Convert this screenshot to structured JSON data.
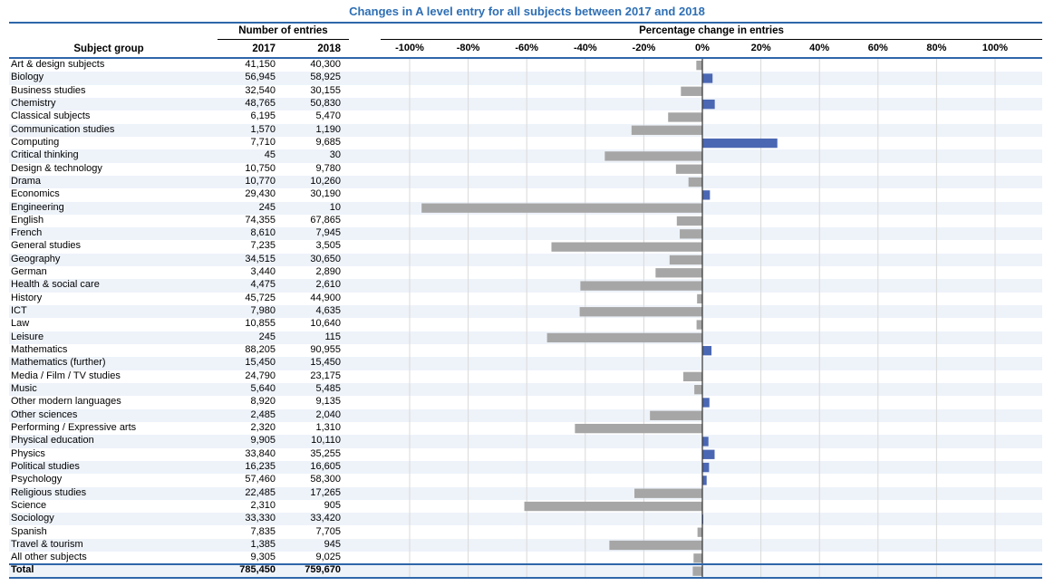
{
  "chart_data": {
    "type": "bar",
    "orientation": "horizontal",
    "title": "Changes in A level entry for all subjects between 2017 and 2018",
    "table_header": {
      "group_label": "Subject group",
      "entries_label": "Number of entries",
      "col_2017": "2017",
      "col_2018": "2018",
      "change_label": "Percentage change in entries"
    },
    "xlim": [
      -100,
      100
    ],
    "x_ticks": [
      "-100%",
      "-80%",
      "-60%",
      "-40%",
      "-20%",
      "0%",
      "20%",
      "40%",
      "60%",
      "80%",
      "100%"
    ],
    "grid": true,
    "colors": {
      "increase": "#4a67b3",
      "decrease": "#a6a6a6",
      "accent": "#2e6fb5",
      "stripe": "#eef3fa"
    },
    "rows": [
      {
        "subject": "Art & design subjects",
        "e2017": "41,150",
        "e2018": "40,300",
        "n2017": 41150,
        "n2018": 40300
      },
      {
        "subject": "Biology",
        "e2017": "56,945",
        "e2018": "58,925",
        "n2017": 56945,
        "n2018": 58925
      },
      {
        "subject": "Business studies",
        "e2017": "32,540",
        "e2018": "30,155",
        "n2017": 32540,
        "n2018": 30155
      },
      {
        "subject": "Chemistry",
        "e2017": "48,765",
        "e2018": "50,830",
        "n2017": 48765,
        "n2018": 50830
      },
      {
        "subject": "Classical subjects",
        "e2017": "6,195",
        "e2018": "5,470",
        "n2017": 6195,
        "n2018": 5470
      },
      {
        "subject": "Communication studies",
        "e2017": "1,570",
        "e2018": "1,190",
        "n2017": 1570,
        "n2018": 1190
      },
      {
        "subject": "Computing",
        "e2017": "7,710",
        "e2018": "9,685",
        "n2017": 7710,
        "n2018": 9685
      },
      {
        "subject": "Critical thinking",
        "e2017": "45",
        "e2018": "30",
        "n2017": 45,
        "n2018": 30
      },
      {
        "subject": "Design & technology",
        "e2017": "10,750",
        "e2018": "9,780",
        "n2017": 10750,
        "n2018": 9780
      },
      {
        "subject": "Drama",
        "e2017": "10,770",
        "e2018": "10,260",
        "n2017": 10770,
        "n2018": 10260
      },
      {
        "subject": "Economics",
        "e2017": "29,430",
        "e2018": "30,190",
        "n2017": 29430,
        "n2018": 30190
      },
      {
        "subject": "Engineering",
        "e2017": "245",
        "e2018": "10",
        "n2017": 245,
        "n2018": 10
      },
      {
        "subject": "English",
        "e2017": "74,355",
        "e2018": "67,865",
        "n2017": 74355,
        "n2018": 67865
      },
      {
        "subject": "French",
        "e2017": "8,610",
        "e2018": "7,945",
        "n2017": 8610,
        "n2018": 7945
      },
      {
        "subject": "General studies",
        "e2017": "7,235",
        "e2018": "3,505",
        "n2017": 7235,
        "n2018": 3505
      },
      {
        "subject": "Geography",
        "e2017": "34,515",
        "e2018": "30,650",
        "n2017": 34515,
        "n2018": 30650
      },
      {
        "subject": "German",
        "e2017": "3,440",
        "e2018": "2,890",
        "n2017": 3440,
        "n2018": 2890
      },
      {
        "subject": "Health & social care",
        "e2017": "4,475",
        "e2018": "2,610",
        "n2017": 4475,
        "n2018": 2610
      },
      {
        "subject": "History",
        "e2017": "45,725",
        "e2018": "44,900",
        "n2017": 45725,
        "n2018": 44900
      },
      {
        "subject": "ICT",
        "e2017": "7,980",
        "e2018": "4,635",
        "n2017": 7980,
        "n2018": 4635
      },
      {
        "subject": "Law",
        "e2017": "10,855",
        "e2018": "10,640",
        "n2017": 10855,
        "n2018": 10640
      },
      {
        "subject": "Leisure",
        "e2017": "245",
        "e2018": "115",
        "n2017": 245,
        "n2018": 115
      },
      {
        "subject": "Mathematics",
        "e2017": "88,205",
        "e2018": "90,955",
        "n2017": 88205,
        "n2018": 90955
      },
      {
        "subject": "Mathematics (further)",
        "e2017": "15,450",
        "e2018": "15,450",
        "n2017": 15450,
        "n2018": 15450
      },
      {
        "subject": "Media / Film / TV studies",
        "e2017": "24,790",
        "e2018": "23,175",
        "n2017": 24790,
        "n2018": 23175
      },
      {
        "subject": "Music",
        "e2017": "5,640",
        "e2018": "5,485",
        "n2017": 5640,
        "n2018": 5485
      },
      {
        "subject": "Other modern languages",
        "e2017": "8,920",
        "e2018": "9,135",
        "n2017": 8920,
        "n2018": 9135
      },
      {
        "subject": "Other sciences",
        "e2017": "2,485",
        "e2018": "2,040",
        "n2017": 2485,
        "n2018": 2040
      },
      {
        "subject": "Performing / Expressive arts",
        "e2017": "2,320",
        "e2018": "1,310",
        "n2017": 2320,
        "n2018": 1310
      },
      {
        "subject": "Physical education",
        "e2017": "9,905",
        "e2018": "10,110",
        "n2017": 9905,
        "n2018": 10110
      },
      {
        "subject": "Physics",
        "e2017": "33,840",
        "e2018": "35,255",
        "n2017": 33840,
        "n2018": 35255
      },
      {
        "subject": "Political studies",
        "e2017": "16,235",
        "e2018": "16,605",
        "n2017": 16235,
        "n2018": 16605
      },
      {
        "subject": "Psychology",
        "e2017": "57,460",
        "e2018": "58,300",
        "n2017": 57460,
        "n2018": 58300
      },
      {
        "subject": "Religious studies",
        "e2017": "22,485",
        "e2018": "17,265",
        "n2017": 22485,
        "n2018": 17265
      },
      {
        "subject": "Science",
        "e2017": "2,310",
        "e2018": "905",
        "n2017": 2310,
        "n2018": 905
      },
      {
        "subject": "Sociology",
        "e2017": "33,330",
        "e2018": "33,420",
        "n2017": 33330,
        "n2018": 33420
      },
      {
        "subject": "Spanish",
        "e2017": "7,835",
        "e2018": "7,705",
        "n2017": 7835,
        "n2018": 7705
      },
      {
        "subject": "Travel & tourism",
        "e2017": "1,385",
        "e2018": "945",
        "n2017": 1385,
        "n2018": 945
      },
      {
        "subject": "All other subjects",
        "e2017": "9,305",
        "e2018": "9,025",
        "n2017": 9305,
        "n2018": 9025
      }
    ],
    "total": {
      "subject": "Total",
      "e2017": "785,450",
      "e2018": "759,670",
      "n2017": 785450,
      "n2018": 759670
    }
  }
}
